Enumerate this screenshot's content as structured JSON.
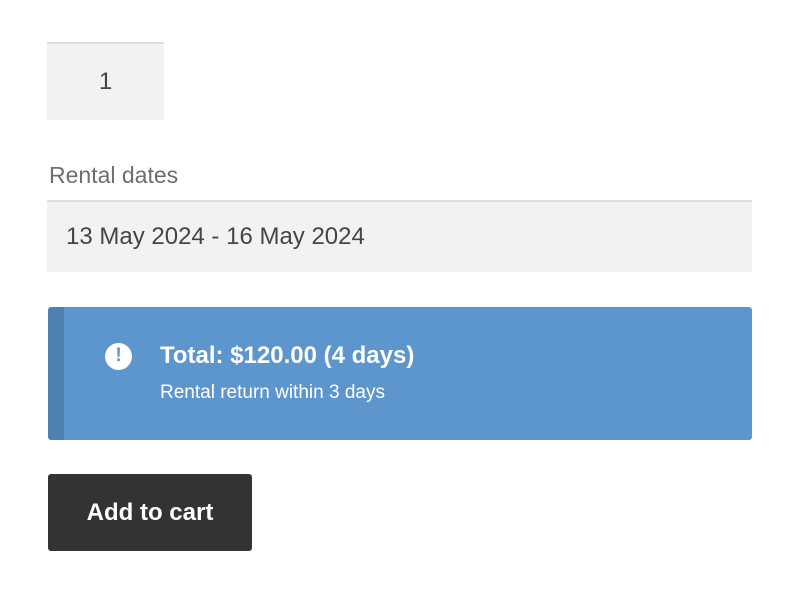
{
  "quantity_input": {
    "value": "1"
  },
  "rental_dates": {
    "label": "Rental dates",
    "value": "13 May 2024 - 16 May 2024"
  },
  "notice": {
    "icon_symbol": "!",
    "total_label": "Total: $120.00 (4 days)",
    "subtext": "Rental return within 3 days",
    "background_color": "#5c96cd",
    "accent_color": "#4e81b0"
  },
  "add_to_cart_button": {
    "label": "Add to cart",
    "background_color": "#333333"
  },
  "colors": {
    "input_background": "#f2f2f2",
    "input_text": "#43454b",
    "label_text": "#6d6d6d"
  }
}
